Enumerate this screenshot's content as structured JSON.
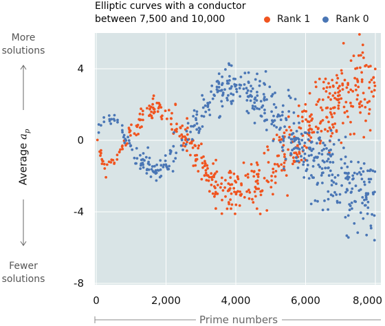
{
  "colors": {
    "rank1": "#f0541f",
    "rank0": "#4a76b5",
    "plot_bg": "#d9e4e6",
    "grid": "#ffffff"
  },
  "chart_data": {
    "type": "scatter",
    "title_line1": "Elliptic curves with a conductor",
    "title_line2": "between 7,500 and 10,000",
    "xlabel": "Prime numbers",
    "ylabel_prefix": "Average ",
    "ylabel_var": "a",
    "ylabel_sub": "p",
    "more_label_1": "More",
    "more_label_2": "solutions",
    "fewer_label_1": "Fewer",
    "fewer_label_2": "solutions",
    "xlim": [
      0,
      8000
    ],
    "ylim": [
      -8,
      6
    ],
    "xticks": [
      0,
      2000,
      4000,
      6000,
      8000
    ],
    "xtick_labels": [
      "0",
      "2,000",
      "4,000",
      "6,000",
      "8,000"
    ],
    "yticks": [
      4,
      0,
      -4,
      -8
    ],
    "ytick_labels": [
      "4",
      "0",
      "-4",
      "-8"
    ],
    "grid": true,
    "legend_position": "top-right",
    "series": [
      {
        "name": "Rank 1",
        "color": "#f0541f",
        "trend": [
          [
            0,
            -0.2
          ],
          [
            100,
            -0.8
          ],
          [
            300,
            -1.5
          ],
          [
            600,
            -1.0
          ],
          [
            900,
            0.2
          ],
          [
            1200,
            0.9
          ],
          [
            1500,
            1.5
          ],
          [
            1800,
            1.8
          ],
          [
            2100,
            1.4
          ],
          [
            2400,
            0.6
          ],
          [
            2700,
            -0.4
          ],
          [
            3000,
            -1.4
          ],
          [
            3300,
            -2.2
          ],
          [
            3600,
            -2.6
          ],
          [
            4000,
            -2.9
          ],
          [
            4400,
            -2.7
          ],
          [
            4800,
            -2.1
          ],
          [
            5200,
            -1.2
          ],
          [
            5600,
            -0.3
          ],
          [
            6000,
            0.6
          ],
          [
            6400,
            1.3
          ],
          [
            6800,
            2.0
          ],
          [
            7200,
            2.6
          ],
          [
            7600,
            3.1
          ],
          [
            8000,
            3.3
          ]
        ],
        "n_points": 520
      },
      {
        "name": "Rank 0",
        "color": "#4a76b5",
        "trend": [
          [
            0,
            0.3
          ],
          [
            100,
            0.9
          ],
          [
            300,
            1.4
          ],
          [
            600,
            1.0
          ],
          [
            900,
            -0.2
          ],
          [
            1200,
            -0.9
          ],
          [
            1500,
            -1.5
          ],
          [
            1800,
            -1.8
          ],
          [
            2100,
            -1.3
          ],
          [
            2400,
            -0.5
          ],
          [
            2700,
            0.5
          ],
          [
            3000,
            1.4
          ],
          [
            3300,
            2.1
          ],
          [
            3600,
            2.6
          ],
          [
            4000,
            2.9
          ],
          [
            4400,
            2.7
          ],
          [
            4800,
            2.0
          ],
          [
            5200,
            1.2
          ],
          [
            5600,
            0.4
          ],
          [
            6000,
            -0.5
          ],
          [
            6400,
            -1.3
          ],
          [
            6800,
            -2.0
          ],
          [
            7200,
            -2.5
          ],
          [
            7600,
            -2.9
          ],
          [
            8000,
            -3.1
          ]
        ],
        "n_points": 520
      }
    ]
  }
}
